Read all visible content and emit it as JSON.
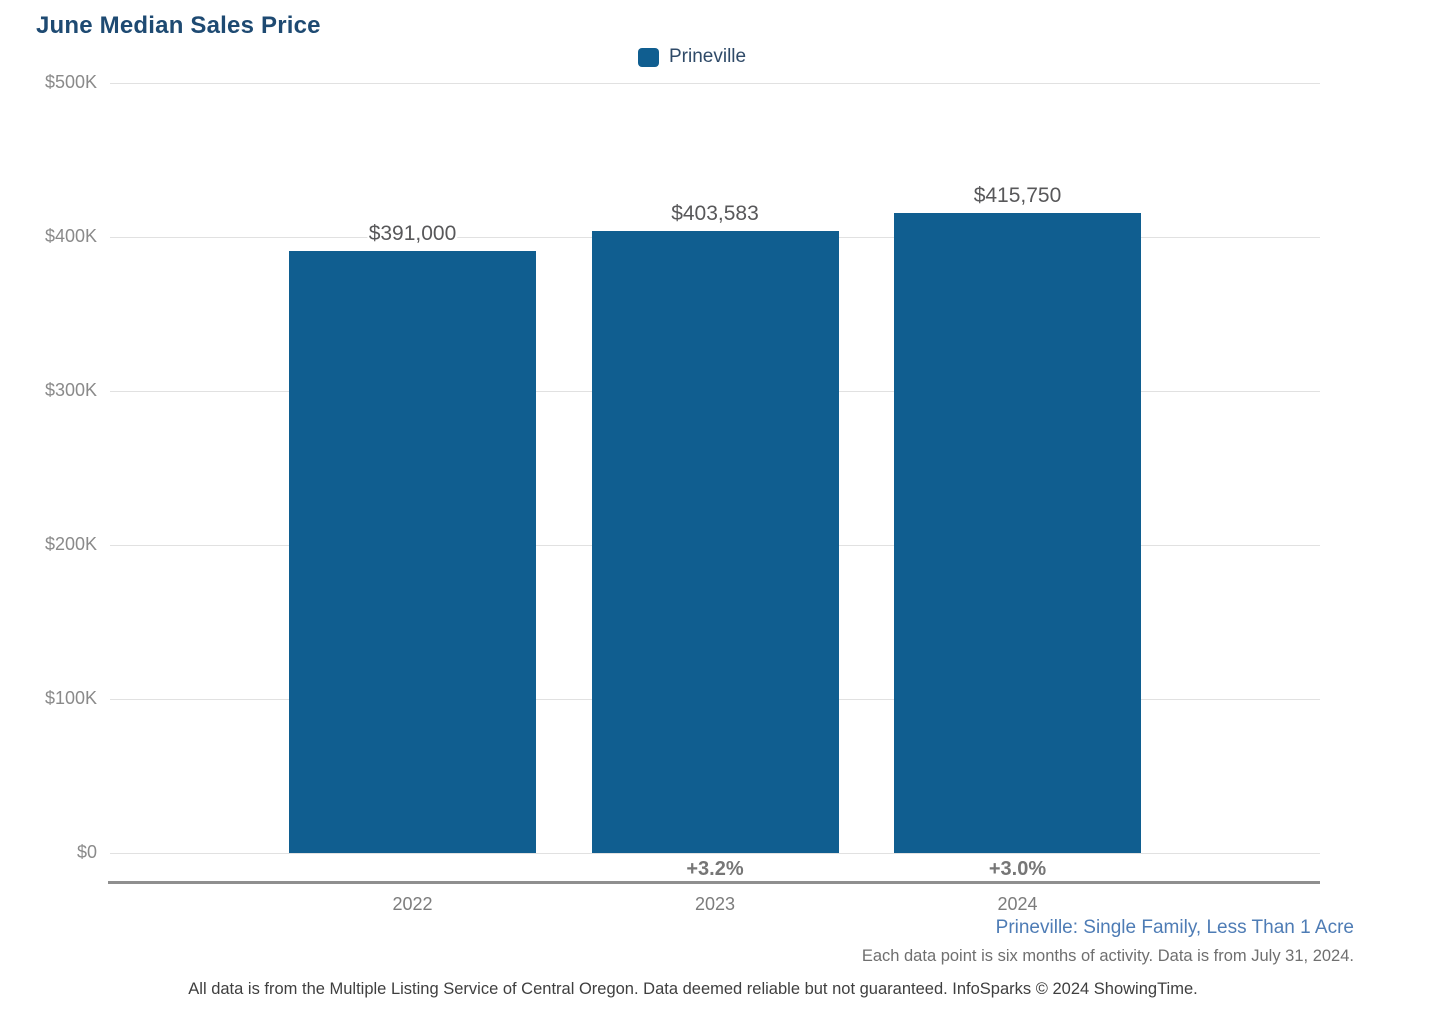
{
  "title": "June Median Sales Price",
  "legend": {
    "items": [
      {
        "label": "Prineville",
        "color": "#105E90"
      }
    ]
  },
  "chart_data": {
    "type": "bar",
    "title": "June Median Sales Price",
    "categories": [
      "2022",
      "2023",
      "2024"
    ],
    "series": [
      {
        "name": "Prineville",
        "values": [
          391000,
          403583,
          415750
        ]
      }
    ],
    "value_labels": [
      "$391,000",
      "$403,583",
      "$415,750"
    ],
    "pct_change_labels": [
      "",
      "+3.2%",
      "+3.0%"
    ],
    "y_axis": {
      "ticks": [
        "$500K",
        "$400K",
        "$300K",
        "$200K",
        "$100K",
        "$0"
      ],
      "min": 0,
      "max": 500000
    },
    "grid": true,
    "legend_position": "top-center",
    "bar_color": "#105E90"
  },
  "footer": {
    "filter_label": "Prineville: Single Family, Less Than 1 Acre",
    "data_note": "Each data point is six months of activity. Data is from July 31, 2024.",
    "disclaimer": "All data is from the Multiple Listing Service of Central Oregon. Data deemed reliable but not guaranteed. InfoSparks © 2024 ShowingTime."
  },
  "colors": {
    "bar_blue": "#105E90",
    "title_navy": "#1E4A72",
    "footer_link_blue": "#4E7CB5",
    "axis_gray": "#8F8F8F",
    "gridline_gray": "#E1E1E1"
  }
}
